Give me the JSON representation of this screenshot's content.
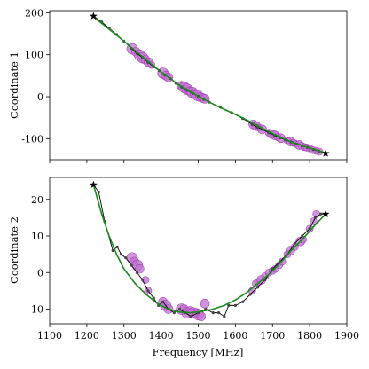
{
  "chart_data": [
    {
      "type": "scatter",
      "ylabel": "Coordinate 1",
      "xlabel": "",
      "xlim": [
        1100,
        1900
      ],
      "ylim": [
        -150,
        205
      ],
      "yticks": [
        -100,
        0,
        100,
        200
      ],
      "xticks": [
        1100,
        1200,
        1300,
        1400,
        1500,
        1600,
        1700,
        1800,
        1900
      ],
      "show_xtick_labels": false,
      "grid": false,
      "endpoints": [
        [
          1218,
          192
        ],
        [
          1843,
          -135
        ]
      ],
      "data_line": [
        [
          1218,
          192
        ],
        [
          1240,
          178
        ],
        [
          1260,
          163
        ],
        [
          1280,
          148
        ],
        [
          1300,
          132
        ],
        [
          1320,
          115
        ],
        [
          1335,
          103
        ],
        [
          1350,
          93
        ],
        [
          1365,
          82
        ],
        [
          1380,
          71
        ],
        [
          1395,
          62
        ],
        [
          1410,
          52
        ],
        [
          1425,
          43
        ],
        [
          1440,
          32
        ],
        [
          1455,
          23
        ],
        [
          1470,
          15
        ],
        [
          1485,
          8
        ],
        [
          1500,
          1
        ],
        [
          1515,
          -6
        ],
        [
          1530,
          -13
        ],
        [
          1560,
          -25
        ],
        [
          1590,
          -38
        ],
        [
          1620,
          -52
        ],
        [
          1645,
          -66
        ],
        [
          1660,
          -73
        ],
        [
          1675,
          -79
        ],
        [
          1690,
          -86
        ],
        [
          1705,
          -92
        ],
        [
          1720,
          -98
        ],
        [
          1735,
          -103
        ],
        [
          1750,
          -108
        ],
        [
          1765,
          -113
        ],
        [
          1780,
          -117
        ],
        [
          1795,
          -121
        ],
        [
          1810,
          -126
        ],
        [
          1825,
          -130
        ],
        [
          1843,
          -135
        ]
      ],
      "fit_line": [
        [
          1218,
          190
        ],
        [
          1260,
          161
        ],
        [
          1300,
          132
        ],
        [
          1350,
          95
        ],
        [
          1400,
          59
        ],
        [
          1450,
          27
        ],
        [
          1500,
          1
        ],
        [
          1550,
          -22
        ],
        [
          1600,
          -42
        ],
        [
          1650,
          -64
        ],
        [
          1700,
          -88
        ],
        [
          1750,
          -108
        ],
        [
          1800,
          -122
        ],
        [
          1843,
          -134
        ]
      ],
      "points": [
        [
          1322,
          114
        ],
        [
          1332,
          107
        ],
        [
          1342,
          99
        ],
        [
          1350,
          93
        ],
        [
          1358,
          88
        ],
        [
          1366,
          82
        ],
        [
          1374,
          76
        ],
        [
          1405,
          56
        ],
        [
          1413,
          50
        ],
        [
          1420,
          46
        ],
        [
          1455,
          26
        ],
        [
          1462,
          22
        ],
        [
          1470,
          18
        ],
        [
          1477,
          13
        ],
        [
          1484,
          10
        ],
        [
          1490,
          7
        ],
        [
          1498,
          3
        ],
        [
          1505,
          -1
        ],
        [
          1512,
          -3
        ],
        [
          1518,
          -5
        ],
        [
          1648,
          -66
        ],
        [
          1656,
          -70
        ],
        [
          1664,
          -74
        ],
        [
          1672,
          -78
        ],
        [
          1690,
          -86
        ],
        [
          1698,
          -89
        ],
        [
          1706,
          -92
        ],
        [
          1714,
          -96
        ],
        [
          1722,
          -99
        ],
        [
          1740,
          -104
        ],
        [
          1748,
          -107
        ],
        [
          1756,
          -110
        ],
        [
          1762,
          -112
        ],
        [
          1772,
          -115
        ],
        [
          1778,
          -117
        ],
        [
          1786,
          -120
        ],
        [
          1792,
          -121
        ],
        [
          1800,
          -123
        ],
        [
          1808,
          -127
        ],
        [
          1818,
          -129
        ],
        [
          1826,
          -131
        ]
      ],
      "point_sizes": [
        6,
        5,
        6,
        6,
        5,
        5,
        4,
        6,
        5,
        5,
        5,
        6,
        6,
        5,
        6,
        5,
        6,
        5,
        5,
        5,
        5,
        5,
        4,
        5,
        4,
        5,
        5,
        4,
        5,
        4,
        5,
        4,
        4,
        5,
        4,
        4,
        4,
        4,
        4,
        4,
        4
      ]
    },
    {
      "type": "scatter",
      "ylabel": "Coordinate 2",
      "xlabel": "Frequency [MHz]",
      "xlim": [
        1100,
        1900
      ],
      "ylim": [
        -14,
        26
      ],
      "yticks": [
        -10,
        0,
        10,
        20
      ],
      "xticks": [
        1100,
        1200,
        1300,
        1400,
        1500,
        1600,
        1700,
        1800,
        1900
      ],
      "show_xtick_labels": true,
      "grid": false,
      "endpoints": [
        [
          1218,
          24
        ],
        [
          1843,
          16
        ]
      ],
      "data_line": [
        [
          1218,
          24
        ],
        [
          1232,
          22
        ],
        [
          1248,
          14
        ],
        [
          1270,
          6
        ],
        [
          1282,
          7
        ],
        [
          1292,
          5
        ],
        [
          1305,
          4
        ],
        [
          1320,
          2
        ],
        [
          1335,
          0
        ],
        [
          1350,
          -2
        ],
        [
          1365,
          -5
        ],
        [
          1380,
          -7
        ],
        [
          1393,
          -9
        ],
        [
          1405,
          -8
        ],
        [
          1420,
          -10
        ],
        [
          1435,
          -11
        ],
        [
          1450,
          -10
        ],
        [
          1465,
          -11
        ],
        [
          1480,
          -12
        ],
        [
          1500,
          -11
        ],
        [
          1520,
          -10
        ],
        [
          1540,
          -11
        ],
        [
          1555,
          -11
        ],
        [
          1570,
          -12
        ],
        [
          1582,
          -9
        ],
        [
          1600,
          -9
        ],
        [
          1620,
          -8
        ],
        [
          1640,
          -6
        ],
        [
          1660,
          -4
        ],
        [
          1680,
          -2
        ],
        [
          1700,
          1
        ],
        [
          1720,
          3
        ],
        [
          1740,
          5
        ],
        [
          1760,
          8
        ],
        [
          1780,
          10
        ],
        [
          1800,
          12
        ],
        [
          1815,
          15
        ],
        [
          1830,
          16
        ],
        [
          1843,
          16
        ]
      ],
      "fit_line": [
        [
          1218,
          24
        ],
        [
          1240,
          16
        ],
        [
          1260,
          10
        ],
        [
          1280,
          5
        ],
        [
          1300,
          1
        ],
        [
          1330,
          -3
        ],
        [
          1360,
          -6
        ],
        [
          1390,
          -8.5
        ],
        [
          1420,
          -10
        ],
        [
          1450,
          -10.8
        ],
        [
          1480,
          -11
        ],
        [
          1510,
          -10.6
        ],
        [
          1540,
          -10
        ],
        [
          1570,
          -9
        ],
        [
          1600,
          -7.5
        ],
        [
          1630,
          -5.5
        ],
        [
          1660,
          -3
        ],
        [
          1690,
          -0.5
        ],
        [
          1720,
          2.5
        ],
        [
          1750,
          6
        ],
        [
          1780,
          9
        ],
        [
          1810,
          12.5
        ],
        [
          1843,
          16
        ]
      ],
      "points": [
        [
          1322,
          4
        ],
        [
          1328,
          3
        ],
        [
          1336,
          2
        ],
        [
          1342,
          1
        ],
        [
          1358,
          -2
        ],
        [
          1365,
          -5
        ],
        [
          1405,
          -8
        ],
        [
          1412,
          -9
        ],
        [
          1420,
          -10
        ],
        [
          1455,
          -10
        ],
        [
          1462,
          -10
        ],
        [
          1470,
          -11
        ],
        [
          1478,
          -10.5
        ],
        [
          1486,
          -11
        ],
        [
          1494,
          -11
        ],
        [
          1500,
          -11.5
        ],
        [
          1508,
          -12
        ],
        [
          1518,
          -8.5
        ],
        [
          1645,
          -5
        ],
        [
          1655,
          -3
        ],
        [
          1662,
          -2.5
        ],
        [
          1670,
          -2
        ],
        [
          1680,
          -1
        ],
        [
          1690,
          0
        ],
        [
          1700,
          0.5
        ],
        [
          1708,
          1
        ],
        [
          1718,
          2
        ],
        [
          1726,
          3
        ],
        [
          1740,
          5
        ],
        [
          1748,
          6
        ],
        [
          1760,
          7
        ],
        [
          1775,
          8.5
        ],
        [
          1782,
          9
        ],
        [
          1800,
          12
        ],
        [
          1810,
          14
        ],
        [
          1818,
          16
        ]
      ],
      "point_sizes": [
        6,
        5,
        6,
        5,
        4,
        4,
        5,
        6,
        5,
        6,
        5,
        6,
        5,
        6,
        5,
        6,
        5,
        5,
        4,
        4,
        4,
        5,
        4,
        4,
        4,
        4,
        4,
        4,
        4,
        5,
        4,
        5,
        4,
        4,
        4,
        4
      ]
    }
  ],
  "colors": {
    "points": "#c070d0",
    "point_edge": "#a040b0",
    "fit_line": "#1a8a1a",
    "data_line": "#000000",
    "endpoints": "#000000"
  }
}
